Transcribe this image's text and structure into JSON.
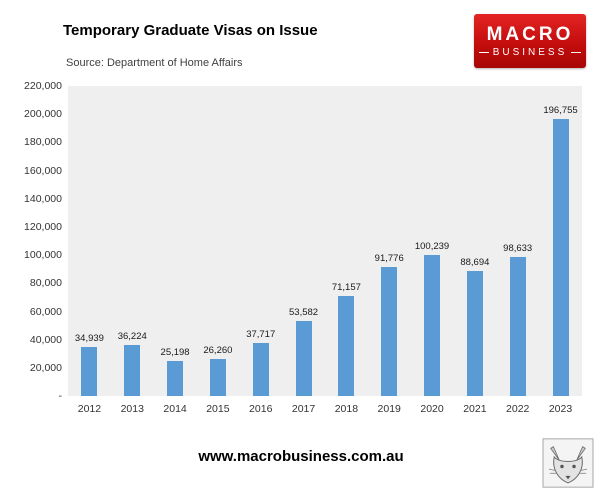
{
  "header": {
    "title": "Temporary Graduate Visas on Issue",
    "source": "Source: Department of Home Affairs"
  },
  "logo": {
    "line1": "MACRO",
    "line2": "BUSINESS"
  },
  "footer": {
    "url": "www.macrobusiness.com.au"
  },
  "colors": {
    "bar": "#5B9BD5",
    "plot_background": "#EFEFEF",
    "logo_red": "#C40D0D"
  },
  "chart_data": {
    "type": "bar",
    "title": "Temporary Graduate Visas on Issue",
    "source": "Source: Department of Home Affairs",
    "categories": [
      "2012",
      "2013",
      "2014",
      "2015",
      "2016",
      "2017",
      "2018",
      "2019",
      "2020",
      "2021",
      "2022",
      "2023"
    ],
    "values": [
      34939,
      36224,
      25198,
      26260,
      37717,
      53582,
      71157,
      91776,
      100239,
      88694,
      98633,
      196755
    ],
    "value_labels": [
      "34,939",
      "36,224",
      "25,198",
      "26,260",
      "37,717",
      "53,582",
      "71,157",
      "91,776",
      "100,239",
      "88,694",
      "98,633",
      "196,755"
    ],
    "xlabel": "",
    "ylabel": "",
    "ylim": [
      0,
      220000
    ],
    "ytick_labels": [
      "220,000",
      "200,000",
      "180,000",
      "160,000",
      "140,000",
      "120,000",
      "100,000",
      "80,000",
      "60,000",
      "40,000",
      "20,000",
      "-"
    ],
    "grid": false,
    "legend": false
  }
}
